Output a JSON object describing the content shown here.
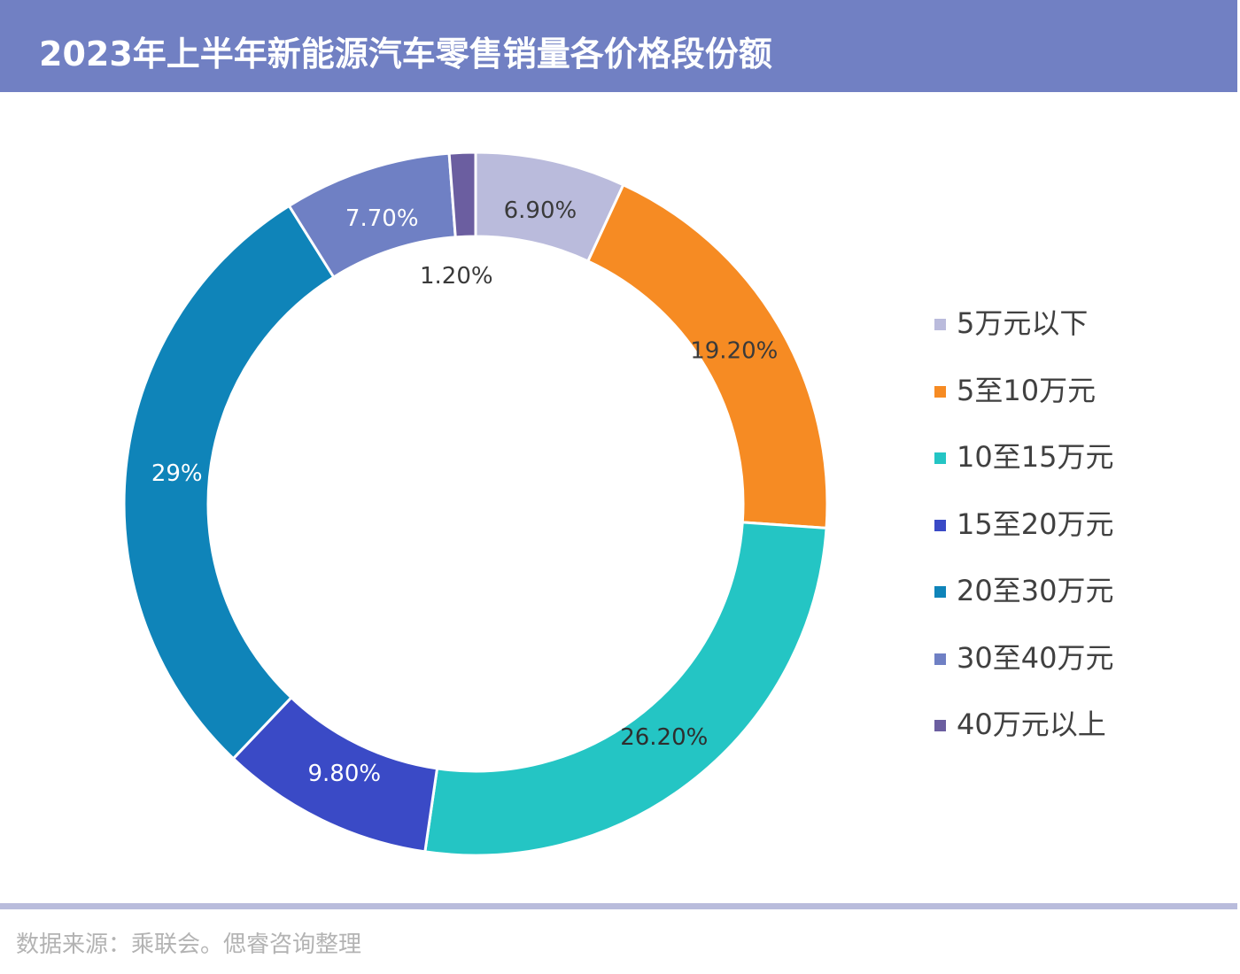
{
  "title": "2023年上半年新能源汽车零售销量各价格段份额",
  "source": "数据来源：乘联会。偲睿咨询整理",
  "colors": {
    "header_bg": "#7180c3",
    "divider": "#b9bcdc"
  },
  "chart_data": {
    "type": "pie",
    "variant": "donut",
    "title": "2023年上半年新能源汽车零售销量各价格段份额",
    "legend_position": "right",
    "slices": [
      {
        "name": "5万元以下",
        "value": 6.9,
        "label": "6.90%",
        "color": "#babbdc",
        "label_color": "#3a3a3a"
      },
      {
        "name": "5至10万元",
        "value": 19.2,
        "label": "19.20%",
        "color": "#f68b23",
        "label_color": "#3a3a3a"
      },
      {
        "name": "10至15万元",
        "value": 26.2,
        "label": "26.20%",
        "color": "#24c5c4",
        "label_color": "#2e2e2e"
      },
      {
        "name": "15至20万元",
        "value": 9.8,
        "label": "9.80%",
        "color": "#3a4ac6",
        "label_color": "#ffffff"
      },
      {
        "name": "20至30万元",
        "value": 29,
        "label": "29%",
        "color": "#0f84b9",
        "label_color": "#ffffff"
      },
      {
        "name": "30至40万元",
        "value": 7.7,
        "label": "7.70%",
        "color": "#6f80c4",
        "label_color": "#ffffff"
      },
      {
        "name": "40万元以上",
        "value": 1.2,
        "label": "1.20%",
        "color": "#6b5ea0",
        "label_color": "#3a3a3a"
      }
    ]
  }
}
